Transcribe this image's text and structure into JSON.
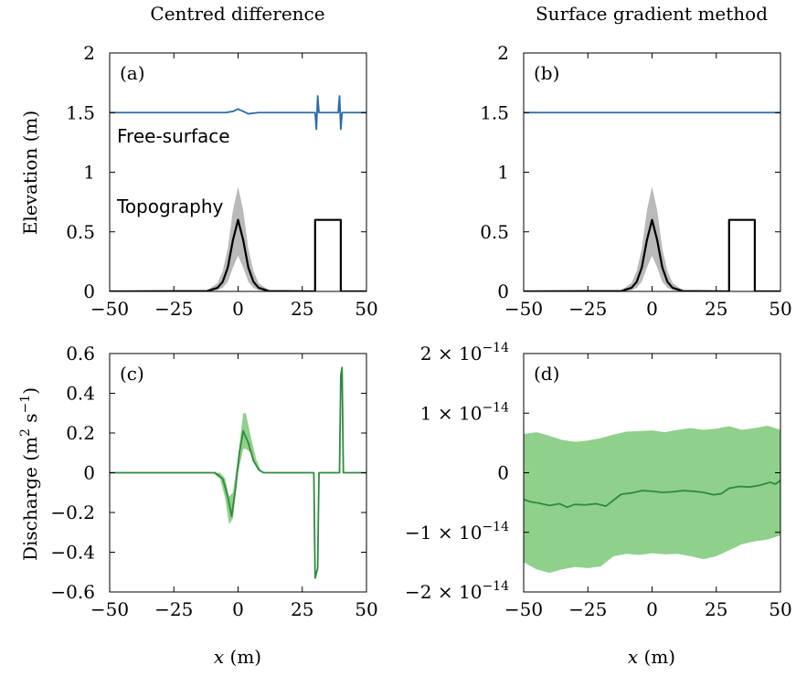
{
  "figure": {
    "titles": [
      "Centred difference",
      "Surface gradient method"
    ],
    "xlabel_italic": "x",
    "xlabel_unit": " (m)",
    "ylabel_elevation": "Elevation (m)",
    "ylabel_discharge_text": "Discharge (m",
    "ylabel_discharge_sup1": "2",
    "ylabel_discharge_mid": " s",
    "ylabel_discharge_sup2": "−1",
    "ylabel_discharge_end": ")"
  },
  "colors": {
    "free_surface": "#2b6aa8",
    "topography": "#000000",
    "topography_band": "#b9b9b9",
    "discharge": "#2e8b3e",
    "discharge_band": "#8fd08a"
  },
  "chart_data": [
    {
      "panel": "(a)",
      "type": "line",
      "title": "Centred difference",
      "xlabel": "",
      "ylabel": "Elevation (m)",
      "xlim": [
        -50,
        50
      ],
      "ylim": [
        0,
        2
      ],
      "xticks": [
        "−50",
        "−25",
        "0",
        "25",
        "50"
      ],
      "yticks": [
        "0",
        "0.5",
        "1",
        "1.5",
        "2"
      ],
      "annotations": [
        "Free-surface",
        "Topography"
      ],
      "series": [
        {
          "role": "free-surface",
          "points": [
            [
              -50,
              1.5
            ],
            [
              -5,
              1.5
            ],
            [
              -2,
              1.51
            ],
            [
              0,
              1.53
            ],
            [
              2,
              1.51
            ],
            [
              4,
              1.49
            ],
            [
              8,
              1.5
            ],
            [
              30,
              1.5
            ],
            [
              30.5,
              1.36
            ],
            [
              31,
              1.64
            ],
            [
              31.5,
              1.5
            ],
            [
              39,
              1.5
            ],
            [
              39.5,
              1.64
            ],
            [
              40,
              1.36
            ],
            [
              40.5,
              1.5
            ],
            [
              50,
              1.5
            ]
          ]
        },
        {
          "role": "topography",
          "points": [
            [
              -50,
              0
            ],
            [
              -12,
              0.003
            ],
            [
              -8,
              0.03
            ],
            [
              -6,
              0.08
            ],
            [
              -4,
              0.2
            ],
            [
              -2,
              0.43
            ],
            [
              0,
              0.6
            ],
            [
              2,
              0.43
            ],
            [
              4,
              0.2
            ],
            [
              6,
              0.08
            ],
            [
              8,
              0.03
            ],
            [
              12,
              0.003
            ],
            [
              30,
              0
            ],
            [
              30,
              0.6
            ],
            [
              40,
              0.6
            ],
            [
              40,
              0
            ],
            [
              50,
              0
            ]
          ]
        },
        {
          "role": "topography-band",
          "upper": [
            [
              -12,
              0.01
            ],
            [
              -8,
              0.07
            ],
            [
              -6,
              0.17
            ],
            [
              -4,
              0.36
            ],
            [
              -2,
              0.68
            ],
            [
              0,
              0.88
            ],
            [
              2,
              0.68
            ],
            [
              4,
              0.36
            ],
            [
              6,
              0.17
            ],
            [
              8,
              0.07
            ],
            [
              12,
              0.01
            ]
          ],
          "lower": [
            [
              -12,
              0
            ],
            [
              -8,
              0.01
            ],
            [
              -6,
              0.03
            ],
            [
              -4,
              0.08
            ],
            [
              -2,
              0.2
            ],
            [
              0,
              0.3
            ],
            [
              2,
              0.2
            ],
            [
              4,
              0.08
            ],
            [
              6,
              0.03
            ],
            [
              8,
              0.01
            ],
            [
              12,
              0
            ]
          ]
        }
      ]
    },
    {
      "panel": "(b)",
      "type": "line",
      "title": "Surface gradient method",
      "xlabel": "",
      "ylabel": "",
      "xlim": [
        -50,
        50
      ],
      "ylim": [
        0,
        2
      ],
      "xticks": [
        "−50",
        "−25",
        "0",
        "25",
        "50"
      ],
      "yticks": [
        "0",
        "0.5",
        "1",
        "1.5",
        "2"
      ],
      "series": [
        {
          "role": "free-surface",
          "points": [
            [
              -50,
              1.5
            ],
            [
              50,
              1.5
            ]
          ]
        },
        {
          "role": "topography",
          "points": [
            [
              -50,
              0
            ],
            [
              -12,
              0.003
            ],
            [
              -8,
              0.03
            ],
            [
              -6,
              0.08
            ],
            [
              -4,
              0.2
            ],
            [
              -2,
              0.43
            ],
            [
              0,
              0.6
            ],
            [
              2,
              0.43
            ],
            [
              4,
              0.2
            ],
            [
              6,
              0.08
            ],
            [
              8,
              0.03
            ],
            [
              12,
              0.003
            ],
            [
              30,
              0
            ],
            [
              30,
              0.6
            ],
            [
              40,
              0.6
            ],
            [
              40,
              0
            ],
            [
              50,
              0
            ]
          ]
        },
        {
          "role": "topography-band",
          "upper": [
            [
              -12,
              0.01
            ],
            [
              -8,
              0.07
            ],
            [
              -6,
              0.17
            ],
            [
              -4,
              0.36
            ],
            [
              -2,
              0.68
            ],
            [
              0,
              0.88
            ],
            [
              2,
              0.68
            ],
            [
              4,
              0.36
            ],
            [
              6,
              0.17
            ],
            [
              8,
              0.07
            ],
            [
              12,
              0.01
            ]
          ],
          "lower": [
            [
              -12,
              0
            ],
            [
              -8,
              0.01
            ],
            [
              -6,
              0.03
            ],
            [
              -4,
              0.08
            ],
            [
              -2,
              0.2
            ],
            [
              0,
              0.3
            ],
            [
              2,
              0.2
            ],
            [
              4,
              0.08
            ],
            [
              6,
              0.03
            ],
            [
              8,
              0.01
            ],
            [
              12,
              0
            ]
          ]
        }
      ]
    },
    {
      "panel": "(c)",
      "type": "line",
      "title": "",
      "xlabel": "x (m)",
      "ylabel": "Discharge (m2 s−1)",
      "xlim": [
        -50,
        50
      ],
      "ylim": [
        -0.6,
        0.6
      ],
      "xticks": [
        "−50",
        "−25",
        "0",
        "25",
        "50"
      ],
      "yticks": [
        "−0.6",
        "−0.4",
        "−0.2",
        "0",
        "0.2",
        "0.4",
        "0.6"
      ],
      "series": [
        {
          "role": "discharge",
          "points": [
            [
              -50,
              0
            ],
            [
              -9,
              0
            ],
            [
              -6,
              -0.03
            ],
            [
              -4,
              -0.12
            ],
            [
              -2.5,
              -0.22
            ],
            [
              -1,
              -0.08
            ],
            [
              0.5,
              0.1
            ],
            [
              2,
              0.21
            ],
            [
              4,
              0.15
            ],
            [
              6,
              0.06
            ],
            [
              8,
              0.015
            ],
            [
              10,
              0
            ],
            [
              29.5,
              0
            ],
            [
              30,
              -0.53
            ],
            [
              31,
              -0.48
            ],
            [
              31.5,
              0
            ],
            [
              39.5,
              0
            ],
            [
              40,
              0.49
            ],
            [
              40.5,
              0.53
            ],
            [
              41,
              0
            ],
            [
              50,
              0
            ]
          ]
        },
        {
          "role": "discharge-band",
          "upper": [
            [
              -10,
              0
            ],
            [
              -7,
              0
            ],
            [
              -5,
              -0.03
            ],
            [
              -3.5,
              -0.12
            ],
            [
              -2,
              -0.1
            ],
            [
              0,
              0.08
            ],
            [
              2,
              0.3
            ],
            [
              3,
              0.3
            ],
            [
              5,
              0.18
            ],
            [
              7,
              0.07
            ],
            [
              9,
              0.01
            ],
            [
              11,
              0
            ]
          ],
          "lower": [
            [
              -10,
              0
            ],
            [
              -7,
              -0.03
            ],
            [
              -5,
              -0.13
            ],
            [
              -3.5,
              -0.26
            ],
            [
              -2,
              -0.23
            ],
            [
              0,
              0
            ],
            [
              2,
              0.12
            ],
            [
              3,
              0.12
            ],
            [
              5,
              0.1
            ],
            [
              7,
              0.03
            ],
            [
              9,
              0
            ],
            [
              11,
              0
            ]
          ]
        }
      ]
    },
    {
      "panel": "(d)",
      "type": "line",
      "title": "",
      "xlabel": "x (m)",
      "ylabel": "",
      "xlim": [
        -50,
        50
      ],
      "ylim": [
        -2e-14,
        2e-14
      ],
      "yticks": [
        "−2 × 10−14",
        "−1 × 10−14",
        "0",
        "1 × 10−14",
        "2 × 10−14"
      ],
      "xticks": [
        "−50",
        "−25",
        "0",
        "25",
        "50"
      ],
      "series": [
        {
          "role": "discharge",
          "points": [
            [
              -50,
              -4.5e-15
            ],
            [
              -47,
              -4.9e-15
            ],
            [
              -44,
              -5.1e-15
            ],
            [
              -40,
              -5.5e-15
            ],
            [
              -36,
              -5.2e-15
            ],
            [
              -33,
              -5.8e-15
            ],
            [
              -30,
              -5.3e-15
            ],
            [
              -26,
              -5.4e-15
            ],
            [
              -22,
              -5.2e-15
            ],
            [
              -18,
              -5.6e-15
            ],
            [
              -15,
              -4.6e-15
            ],
            [
              -12,
              -3.6e-15
            ],
            [
              -8,
              -3.4e-15
            ],
            [
              -4,
              -3e-15
            ],
            [
              0,
              -3.1e-15
            ],
            [
              4,
              -3.3e-15
            ],
            [
              8,
              -3.2e-15
            ],
            [
              12,
              -3e-15
            ],
            [
              16,
              -3.1e-15
            ],
            [
              20,
              -3.3e-15
            ],
            [
              24,
              -3.7e-15
            ],
            [
              27,
              -3.5e-15
            ],
            [
              30,
              -2.6e-15
            ],
            [
              34,
              -2.3e-15
            ],
            [
              38,
              -2.4e-15
            ],
            [
              42,
              -2.1e-15
            ],
            [
              46,
              -1.6e-15
            ],
            [
              48,
              -1.9e-15
            ],
            [
              50,
              -1.3e-15
            ]
          ]
        },
        {
          "role": "discharge-band",
          "upper": [
            [
              -50,
              6.5e-15
            ],
            [
              -45,
              6.8e-15
            ],
            [
              -40,
              6.2e-15
            ],
            [
              -35,
              5.5e-15
            ],
            [
              -30,
              5.2e-15
            ],
            [
              -25,
              5.4e-15
            ],
            [
              -20,
              5.8e-15
            ],
            [
              -15,
              6.4e-15
            ],
            [
              -10,
              6.9e-15
            ],
            [
              -5,
              7e-15
            ],
            [
              0,
              7.1e-15
            ],
            [
              5,
              6.8e-15
            ],
            [
              10,
              7.2e-15
            ],
            [
              15,
              7.5e-15
            ],
            [
              20,
              7.2e-15
            ],
            [
              25,
              7.4e-15
            ],
            [
              30,
              7.8e-15
            ],
            [
              35,
              7.2e-15
            ],
            [
              40,
              7.5e-15
            ],
            [
              45,
              7.9e-15
            ],
            [
              50,
              7.2e-15
            ]
          ],
          "lower": [
            [
              -50,
              -1.5e-14
            ],
            [
              -45,
              -1.62e-14
            ],
            [
              -40,
              -1.68e-14
            ],
            [
              -35,
              -1.62e-14
            ],
            [
              -30,
              -1.58e-14
            ],
            [
              -25,
              -1.6e-14
            ],
            [
              -20,
              -1.57e-14
            ],
            [
              -15,
              -1.4e-14
            ],
            [
              -10,
              -1.36e-14
            ],
            [
              -5,
              -1.38e-14
            ],
            [
              0,
              -1.35e-14
            ],
            [
              5,
              -1.37e-14
            ],
            [
              10,
              -1.36e-14
            ],
            [
              15,
              -1.4e-14
            ],
            [
              20,
              -1.45e-14
            ],
            [
              25,
              -1.4e-14
            ],
            [
              30,
              -1.3e-14
            ],
            [
              35,
              -1.2e-14
            ],
            [
              40,
              -1.15e-14
            ],
            [
              45,
              -1.12e-14
            ],
            [
              50,
              -1.05e-14
            ]
          ]
        }
      ]
    }
  ]
}
